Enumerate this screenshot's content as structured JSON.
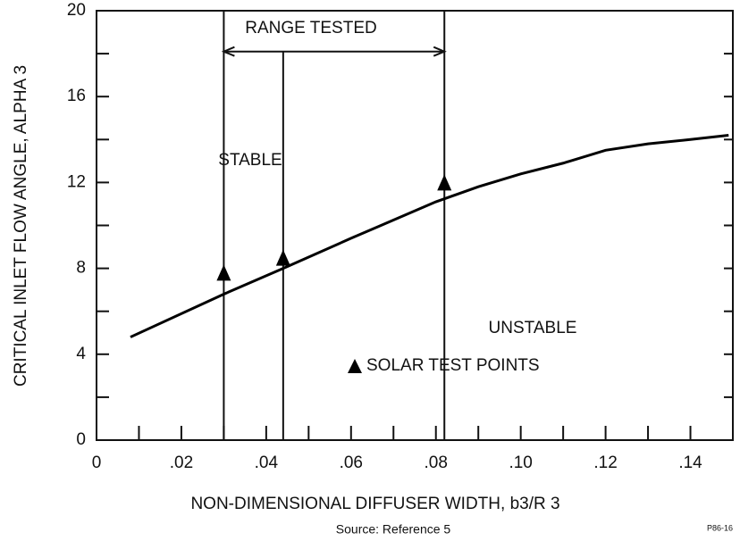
{
  "chart_data": {
    "type": "line",
    "x_label": "NON-DIMENSIONAL DIFFUSER WIDTH, b3/R 3",
    "y_label": "CRITICAL INLET FLOW ANGLE, ALPHA 3",
    "source": "Source: Reference 5",
    "figure_code": "P86-16",
    "xlim": [
      0,
      0.15
    ],
    "ylim": [
      0,
      20
    ],
    "xticks": [
      0,
      {
        "value": 0.02,
        "label": ".02"
      },
      {
        "value": 0.04,
        "label": ".04"
      },
      {
        "value": 0.06,
        "label": ".06"
      },
      {
        "value": 0.08,
        "label": ".08"
      },
      {
        "value": 0.1,
        "label": ".10"
      },
      {
        "value": 0.12,
        "label": ".12"
      },
      {
        "value": 0.14,
        "label": ".14"
      }
    ],
    "yticks": [
      0,
      4,
      8,
      12,
      16,
      20
    ],
    "curve": {
      "color": "#000000",
      "x": [
        0.008,
        0.03,
        0.044,
        0.06,
        0.08,
        0.09,
        0.1,
        0.11,
        0.12,
        0.13,
        0.14,
        0.149
      ],
      "values": [
        4.8,
        6.8,
        8.0,
        9.4,
        11.1,
        11.8,
        12.4,
        12.9,
        13.5,
        13.8,
        14.0,
        14.2
      ]
    },
    "test_points": {
      "name": "SOLAR TEST POINTS",
      "color": "#000000",
      "x": [
        0.03,
        0.044,
        0.082
      ],
      "values": [
        7.8,
        8.5,
        12.0
      ]
    },
    "range_lines": [
      0.03,
      0.044,
      0.082
    ],
    "range_arrow": {
      "label": "RANGE TESTED",
      "y": 18.1,
      "x": [
        0.03,
        0.082
      ]
    },
    "regions": [
      "STABLE",
      "UNSTABLE"
    ]
  }
}
